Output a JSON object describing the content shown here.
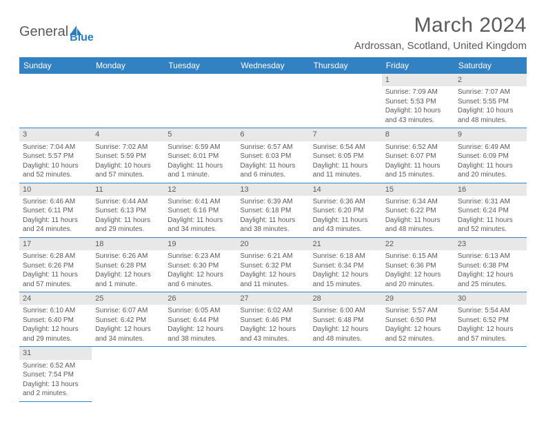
{
  "logo": {
    "text1": "General",
    "text2": "Blue"
  },
  "title": "March 2024",
  "location": "Ardrossan, Scotland, United Kingdom",
  "colors": {
    "header_bg": "#3282c3",
    "header_text": "#ffffff",
    "daynum_bg": "#e8e8e8",
    "text": "#5a5a5a",
    "border": "#3282c3",
    "logo_blue": "#2b7bbf"
  },
  "day_headers": [
    "Sunday",
    "Monday",
    "Tuesday",
    "Wednesday",
    "Thursday",
    "Friday",
    "Saturday"
  ],
  "weeks": [
    [
      null,
      null,
      null,
      null,
      null,
      {
        "n": "1",
        "sunrise": "7:09 AM",
        "sunset": "5:53 PM",
        "daylight": "10 hours and 43 minutes."
      },
      {
        "n": "2",
        "sunrise": "7:07 AM",
        "sunset": "5:55 PM",
        "daylight": "10 hours and 48 minutes."
      }
    ],
    [
      {
        "n": "3",
        "sunrise": "7:04 AM",
        "sunset": "5:57 PM",
        "daylight": "10 hours and 52 minutes."
      },
      {
        "n": "4",
        "sunrise": "7:02 AM",
        "sunset": "5:59 PM",
        "daylight": "10 hours and 57 minutes."
      },
      {
        "n": "5",
        "sunrise": "6:59 AM",
        "sunset": "6:01 PM",
        "daylight": "11 hours and 1 minute."
      },
      {
        "n": "6",
        "sunrise": "6:57 AM",
        "sunset": "6:03 PM",
        "daylight": "11 hours and 6 minutes."
      },
      {
        "n": "7",
        "sunrise": "6:54 AM",
        "sunset": "6:05 PM",
        "daylight": "11 hours and 11 minutes."
      },
      {
        "n": "8",
        "sunrise": "6:52 AM",
        "sunset": "6:07 PM",
        "daylight": "11 hours and 15 minutes."
      },
      {
        "n": "9",
        "sunrise": "6:49 AM",
        "sunset": "6:09 PM",
        "daylight": "11 hours and 20 minutes."
      }
    ],
    [
      {
        "n": "10",
        "sunrise": "6:46 AM",
        "sunset": "6:11 PM",
        "daylight": "11 hours and 24 minutes."
      },
      {
        "n": "11",
        "sunrise": "6:44 AM",
        "sunset": "6:13 PM",
        "daylight": "11 hours and 29 minutes."
      },
      {
        "n": "12",
        "sunrise": "6:41 AM",
        "sunset": "6:16 PM",
        "daylight": "11 hours and 34 minutes."
      },
      {
        "n": "13",
        "sunrise": "6:39 AM",
        "sunset": "6:18 PM",
        "daylight": "11 hours and 38 minutes."
      },
      {
        "n": "14",
        "sunrise": "6:36 AM",
        "sunset": "6:20 PM",
        "daylight": "11 hours and 43 minutes."
      },
      {
        "n": "15",
        "sunrise": "6:34 AM",
        "sunset": "6:22 PM",
        "daylight": "11 hours and 48 minutes."
      },
      {
        "n": "16",
        "sunrise": "6:31 AM",
        "sunset": "6:24 PM",
        "daylight": "11 hours and 52 minutes."
      }
    ],
    [
      {
        "n": "17",
        "sunrise": "6:28 AM",
        "sunset": "6:26 PM",
        "daylight": "11 hours and 57 minutes."
      },
      {
        "n": "18",
        "sunrise": "6:26 AM",
        "sunset": "6:28 PM",
        "daylight": "12 hours and 1 minute."
      },
      {
        "n": "19",
        "sunrise": "6:23 AM",
        "sunset": "6:30 PM",
        "daylight": "12 hours and 6 minutes."
      },
      {
        "n": "20",
        "sunrise": "6:21 AM",
        "sunset": "6:32 PM",
        "daylight": "12 hours and 11 minutes."
      },
      {
        "n": "21",
        "sunrise": "6:18 AM",
        "sunset": "6:34 PM",
        "daylight": "12 hours and 15 minutes."
      },
      {
        "n": "22",
        "sunrise": "6:15 AM",
        "sunset": "6:36 PM",
        "daylight": "12 hours and 20 minutes."
      },
      {
        "n": "23",
        "sunrise": "6:13 AM",
        "sunset": "6:38 PM",
        "daylight": "12 hours and 25 minutes."
      }
    ],
    [
      {
        "n": "24",
        "sunrise": "6:10 AM",
        "sunset": "6:40 PM",
        "daylight": "12 hours and 29 minutes."
      },
      {
        "n": "25",
        "sunrise": "6:07 AM",
        "sunset": "6:42 PM",
        "daylight": "12 hours and 34 minutes."
      },
      {
        "n": "26",
        "sunrise": "6:05 AM",
        "sunset": "6:44 PM",
        "daylight": "12 hours and 38 minutes."
      },
      {
        "n": "27",
        "sunrise": "6:02 AM",
        "sunset": "6:46 PM",
        "daylight": "12 hours and 43 minutes."
      },
      {
        "n": "28",
        "sunrise": "6:00 AM",
        "sunset": "6:48 PM",
        "daylight": "12 hours and 48 minutes."
      },
      {
        "n": "29",
        "sunrise": "5:57 AM",
        "sunset": "6:50 PM",
        "daylight": "12 hours and 52 minutes."
      },
      {
        "n": "30",
        "sunrise": "5:54 AM",
        "sunset": "6:52 PM",
        "daylight": "12 hours and 57 minutes."
      }
    ],
    [
      {
        "n": "31",
        "sunrise": "6:52 AM",
        "sunset": "7:54 PM",
        "daylight": "13 hours and 2 minutes."
      },
      null,
      null,
      null,
      null,
      null,
      null
    ]
  ]
}
